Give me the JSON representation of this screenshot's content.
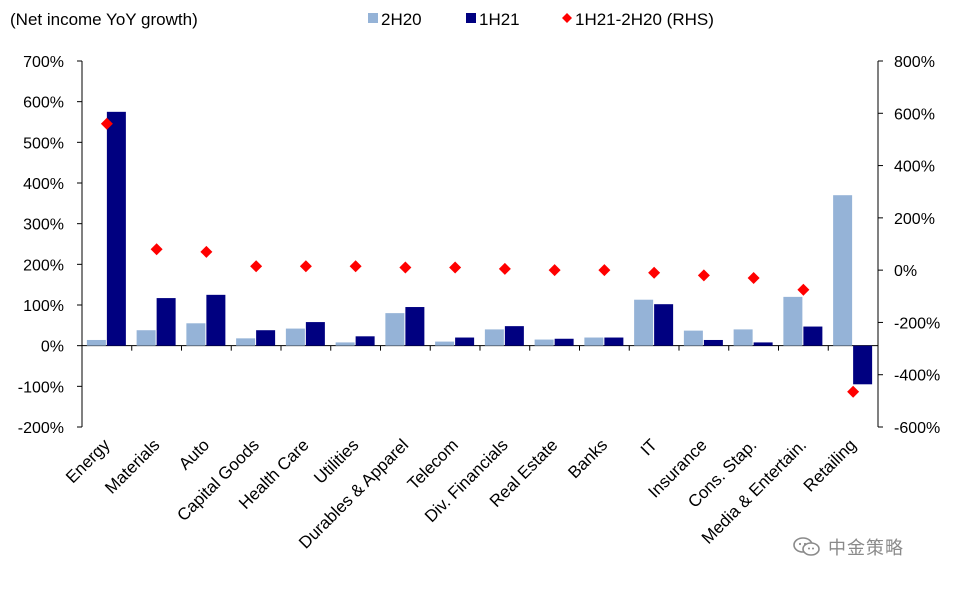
{
  "chart_data": {
    "type": "bar",
    "subtitle": "(Net income YoY growth)",
    "categories": [
      "Energy",
      "Materials",
      "Auto",
      "Capital Goods",
      "Health Care",
      "Utilities",
      "Durables & Apparel",
      "Telecom",
      "Div. Financials",
      "Real Estate",
      "Banks",
      "IT",
      "Insurance",
      "Cons. Stap.",
      "Media & Entertain.",
      "Retailing"
    ],
    "series": [
      {
        "name": "2H20",
        "type": "bar",
        "axis": "left",
        "color": "#95b3d7",
        "values": [
          14,
          38,
          55,
          18,
          42,
          8,
          80,
          10,
          40,
          15,
          20,
          113,
          37,
          40,
          120,
          370
        ]
      },
      {
        "name": "1H21",
        "type": "bar",
        "axis": "left",
        "color": "#000080",
        "values": [
          575,
          117,
          125,
          38,
          58,
          23,
          95,
          20,
          48,
          17,
          20,
          102,
          14,
          8,
          47,
          -95
        ]
      },
      {
        "name": "1H21-2H20 (RHS)",
        "type": "scatter",
        "axis": "right",
        "color": "#ff0000",
        "marker": "diamond",
        "values": [
          560,
          80,
          70,
          15,
          15,
          15,
          10,
          10,
          5,
          0,
          0,
          -10,
          -20,
          -30,
          -75,
          -465
        ]
      }
    ],
    "y_left": {
      "min": -200,
      "max": 700,
      "step": 100,
      "tick_labels": [
        "-200%",
        "-100%",
        "0%",
        "100%",
        "200%",
        "300%",
        "400%",
        "500%",
        "600%",
        "700%"
      ]
    },
    "y_right": {
      "min": -600,
      "max": 800,
      "step": 200,
      "tick_labels": [
        "-600%",
        "-400%",
        "-200%",
        "0%",
        "200%",
        "400%",
        "600%",
        "800%"
      ]
    },
    "grid": false,
    "legend_position": "top"
  },
  "watermark": {
    "icon": "wechat-icon",
    "text": "中金策略"
  }
}
